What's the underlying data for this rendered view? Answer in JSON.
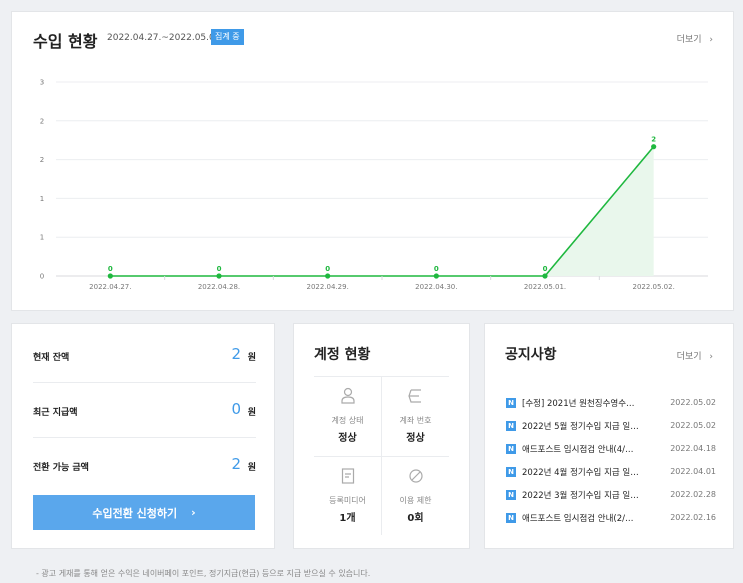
{
  "revenue": {
    "title": "수입 현황",
    "period": "2022.04.27.~2022.05.03.",
    "badge": "집계 중",
    "more": "더보기"
  },
  "chart_data": {
    "type": "area",
    "categories": [
      "2022.04.27.",
      "2022.04.28.",
      "2022.04.29.",
      "2022.04.30.",
      "2022.05.01.",
      "2022.05.02."
    ],
    "values": [
      0,
      0,
      0,
      0,
      0,
      2
    ],
    "data_labels": [
      "0",
      "0",
      "0",
      "0",
      "0",
      "2"
    ],
    "y_tick_labels": [
      "0",
      "1",
      "1",
      "2",
      "2",
      "3"
    ],
    "ylim": [
      0,
      3
    ],
    "grid": true,
    "line_color": "#1fb83f",
    "fill_color": "#e9f7ec"
  },
  "balance": {
    "rows": [
      {
        "label": "현재 잔액",
        "value": "2",
        "unit": "원"
      },
      {
        "label": "최근 지급액",
        "value": "0",
        "unit": "원"
      },
      {
        "label": "전환 가능 금액",
        "value": "2",
        "unit": "원"
      }
    ],
    "button_label": "수입전환 신청하기",
    "button_chevron": "›"
  },
  "account": {
    "title": "계정 현황",
    "cells": [
      {
        "icon": "person-icon",
        "label": "계정 상태",
        "value": "정상"
      },
      {
        "icon": "bank-card-icon",
        "label": "계좌 번호",
        "value": "정상"
      },
      {
        "icon": "document-icon",
        "label": "등록미디어",
        "value": "1개"
      },
      {
        "icon": "prohibited-icon",
        "label": "이용 제한",
        "value": "0회"
      }
    ]
  },
  "notices": {
    "title": "공지사항",
    "more": "더보기",
    "badge": "N",
    "items": [
      {
        "title": "[수정] 2021년 원천징수영수…",
        "date": "2022.05.02"
      },
      {
        "title": "2022년 5월 정기수입 지급 일…",
        "date": "2022.05.02"
      },
      {
        "title": "애드포스트 임시점검 안내(4/…",
        "date": "2022.04.18"
      },
      {
        "title": "2022년 4월 정기수입 지급 일…",
        "date": "2022.04.01"
      },
      {
        "title": "2022년 3월 정기수입 지급 일…",
        "date": "2022.02.28"
      },
      {
        "title": "애드포스트 임시점검 안내(2/…",
        "date": "2022.02.16"
      }
    ]
  },
  "footnote": "- 광고 게재를 통해 얻은 수익은 네이버페이 포인트, 정기지급(현금) 등으로 지급 받으실 수 있습니다."
}
